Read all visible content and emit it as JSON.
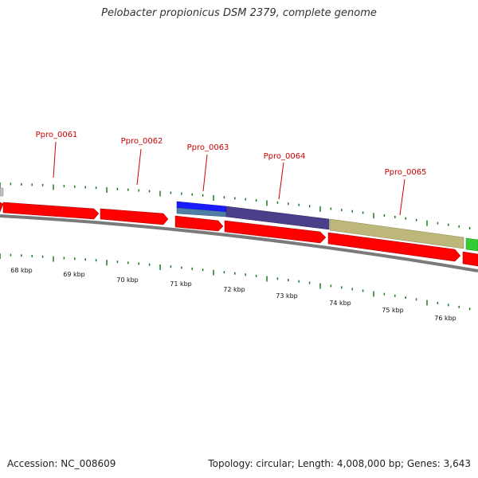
{
  "header": {
    "title": "Pelobacter propionicus DSM 2379, complete genome"
  },
  "footer": {
    "accession": "Accession: NC_008609",
    "topology": "Topology: circular; Length: 4,008,000 bp; Genes: 3,643"
  },
  "colors": {
    "forward_cds": "#ff0000",
    "reverse_cds": "#ff0000",
    "gene_blue": "#1a1aff",
    "gene_steel": "#4f7fa6",
    "gene_indigo": "#4b3f8c",
    "gene_khaki": "#bdb77a",
    "gene_green": "#33cc33",
    "gene_grey": "#c0c0c0",
    "backbone": "#7a7a7a",
    "ticks": "#1e7a1e",
    "gene_label": "#cc0000"
  },
  "gene_labels": [
    "Ppro_0061",
    "Ppro_0062",
    "Ppro_0063",
    "Ppro_0064",
    "Ppro_0065"
  ],
  "scale_labels": [
    "68 kbp",
    "69 kbp",
    "70 kbp",
    "71 kbp",
    "72 kbp",
    "73 kbp",
    "74 kbp",
    "75 kbp",
    "76 kbp"
  ]
}
